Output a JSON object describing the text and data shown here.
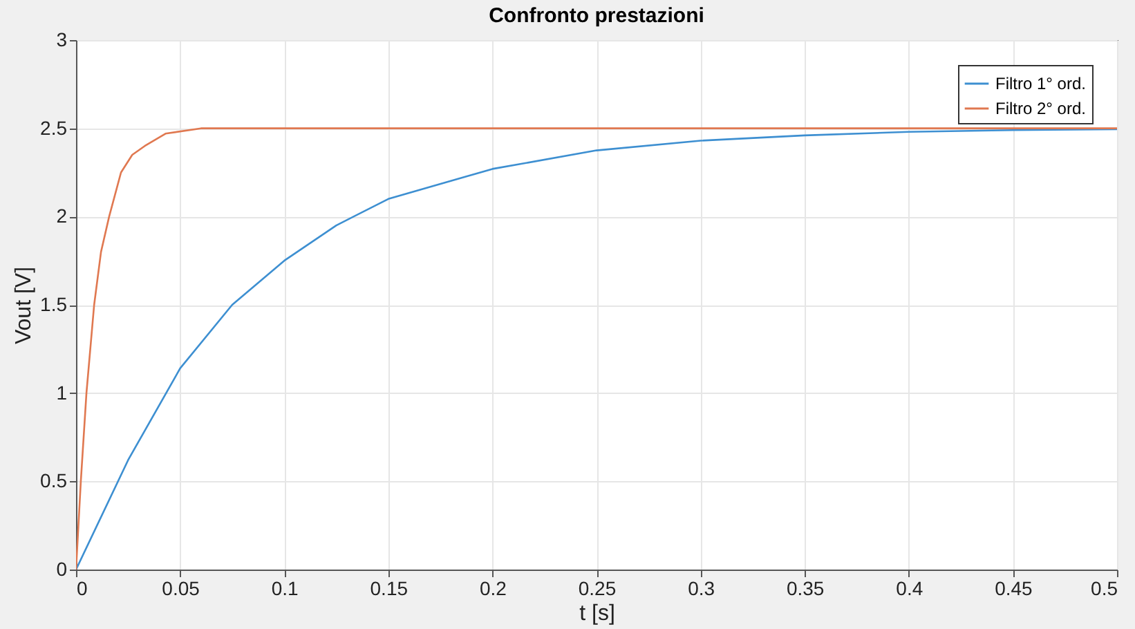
{
  "chart_data": {
    "type": "line",
    "title": "Confronto prestazioni",
    "xlabel": "t [s]",
    "ylabel": "Vout [V]",
    "xlim": [
      0,
      0.5
    ],
    "ylim": [
      0,
      3
    ],
    "xticks": [
      0,
      0.05,
      0.1,
      0.15,
      0.2,
      0.25,
      0.3,
      0.35,
      0.4,
      0.45,
      0.5
    ],
    "yticks": [
      0,
      0.5,
      1,
      1.5,
      2,
      2.5,
      3
    ],
    "grid": true,
    "legend": "top right",
    "marker": "none",
    "line_style": "solid",
    "series": [
      {
        "name": "Filtro 1° ord.",
        "color": "#3d8fd1",
        "x": [
          0,
          0.025,
          0.05,
          0.075,
          0.1,
          0.125,
          0.15,
          0.2,
          0.25,
          0.3,
          0.35,
          0.4,
          0.45,
          0.5
        ],
        "values": [
          0,
          0.62,
          1.14,
          1.5,
          1.75,
          1.95,
          2.1,
          2.27,
          2.375,
          2.43,
          2.46,
          2.48,
          2.49,
          2.495
        ]
      },
      {
        "name": "Filtro 2° ord.",
        "color": "#e07850",
        "x": [
          0,
          0.0023,
          0.005,
          0.0087,
          0.012,
          0.0159,
          0.0216,
          0.027,
          0.033,
          0.043,
          0.06,
          0.5
        ],
        "values": [
          0,
          0.5,
          1,
          1.5,
          1.8,
          2,
          2.25,
          2.35,
          2.4,
          2.47,
          2.5,
          2.5
        ]
      }
    ]
  }
}
